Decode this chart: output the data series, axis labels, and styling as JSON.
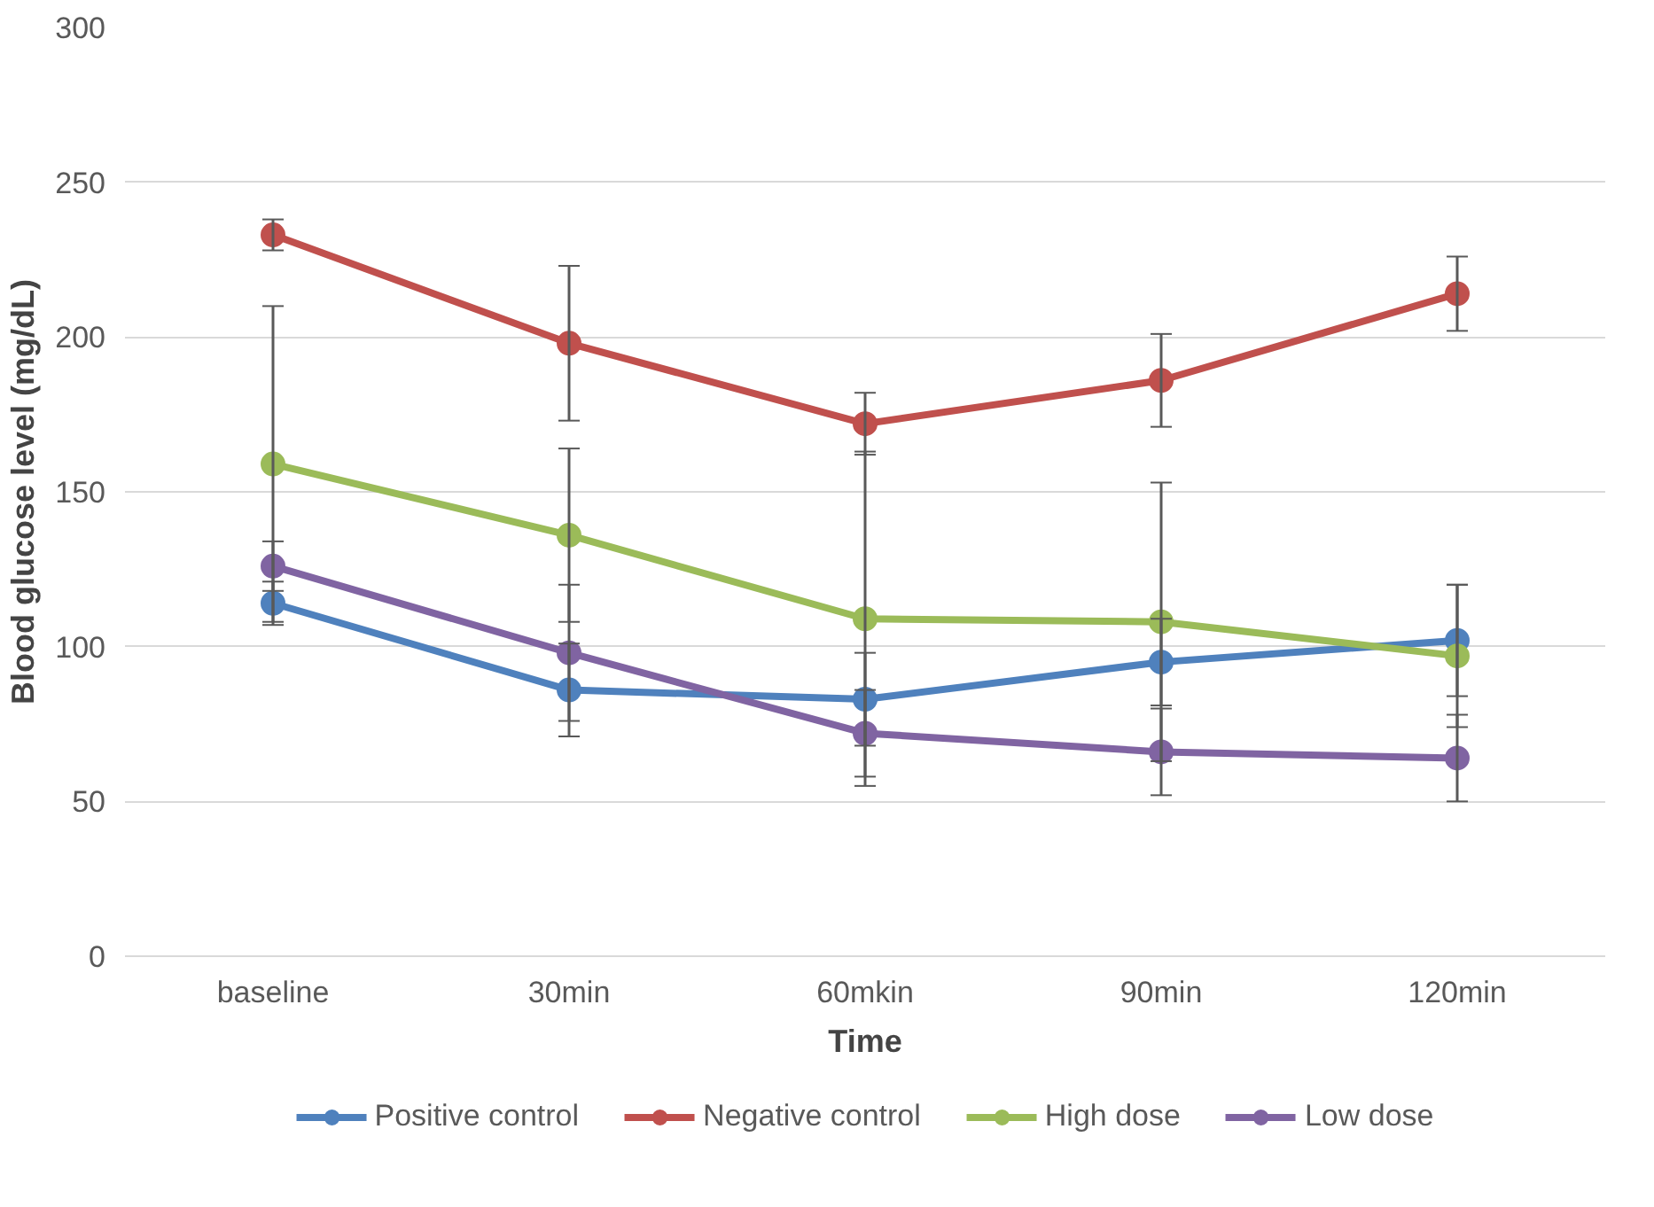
{
  "chart_data": {
    "type": "line",
    "xlabel": "Time",
    "ylabel": "Blood glucose level (mg/dL)",
    "categories": [
      "baseline",
      "30min",
      "60mkin",
      "90min",
      "120min"
    ],
    "ylim": [
      0,
      300
    ],
    "yticks": [
      0,
      50,
      100,
      150,
      200,
      250,
      300
    ],
    "grid": "y",
    "legend": "bottom",
    "marker": "circle",
    "series": [
      {
        "name": "Positive control",
        "color": "#4f81bd",
        "values": [
          114,
          86,
          83,
          95,
          102
        ],
        "errors": [
          7,
          15,
          15,
          14,
          18
        ]
      },
      {
        "name": "Negative control",
        "color": "#c0504d",
        "values": [
          233,
          198,
          172,
          186,
          214
        ],
        "errors": [
          5,
          25,
          10,
          15,
          12
        ]
      },
      {
        "name": "High dose",
        "color": "#9bbb59",
        "values": [
          159,
          136,
          109,
          108,
          97
        ],
        "errors": [
          51,
          28,
          54,
          45,
          23
        ]
      },
      {
        "name": "Low dose",
        "color": "#8064a2",
        "values": [
          126,
          98,
          72,
          66,
          64
        ],
        "errors": [
          8,
          22,
          14,
          14,
          14
        ]
      }
    ]
  }
}
